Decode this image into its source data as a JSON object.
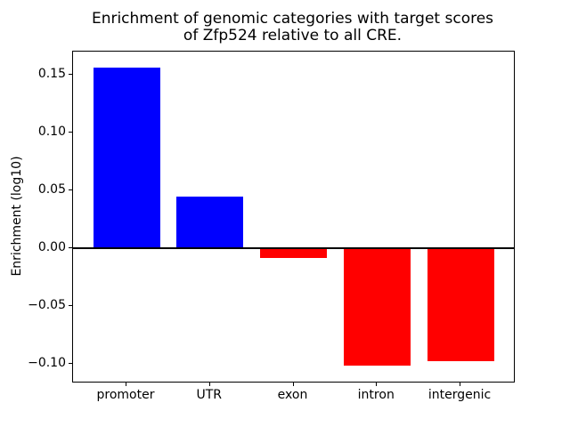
{
  "chart_data": {
    "type": "bar",
    "title_lines": [
      "Enrichment of genomic categories with target scores",
      "of Zfp524 relative to all CRE."
    ],
    "ylabel": "Enrichment (log10)",
    "xlabel": "",
    "categories": [
      "promoter",
      "UTR",
      "exon",
      "intron",
      "intergenic"
    ],
    "values": [
      0.156,
      0.045,
      -0.008,
      -0.101,
      -0.097
    ],
    "bar_colors": [
      "#0000ff",
      "#0000ff",
      "#ff0000",
      "#ff0000",
      "#ff0000"
    ],
    "positive_color": "#0000ff",
    "negative_color": "#ff0000",
    "yticks": [
      0.15,
      0.1,
      0.05,
      0.0,
      -0.05,
      -0.1
    ],
    "ytick_labels": [
      "0.15",
      "0.10",
      "0.05",
      "0.00",
      "−0.05",
      "−0.10"
    ],
    "ylim": [
      -0.115,
      0.17
    ],
    "xlim": [
      -0.64,
      4.64
    ],
    "bar_width": 0.8,
    "grid": false,
    "legend": null,
    "frame_color": "#000000",
    "zero_line_color": "#000000",
    "background_color": "#ffffff"
  }
}
